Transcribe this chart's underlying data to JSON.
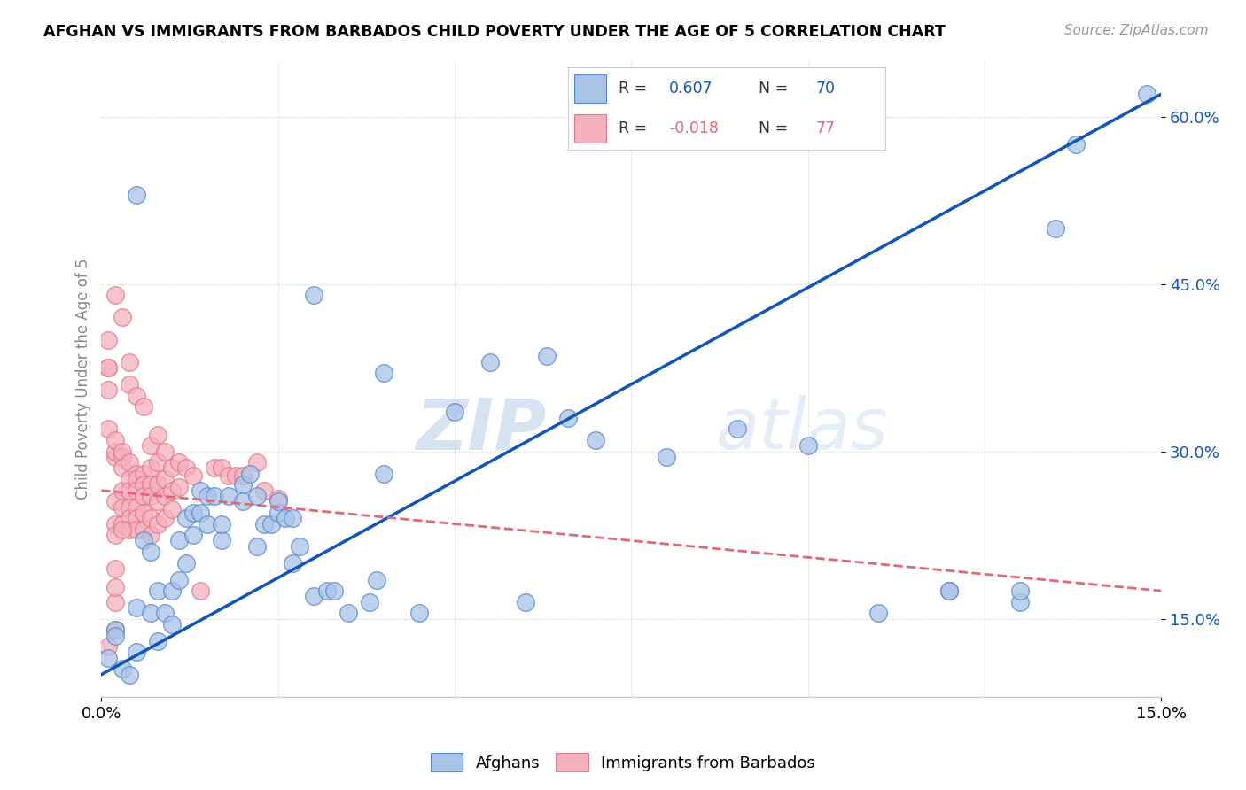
{
  "title": "AFGHAN VS IMMIGRANTS FROM BARBADOS CHILD POVERTY UNDER THE AGE OF 5 CORRELATION CHART",
  "source": "Source: ZipAtlas.com",
  "ylabel": "Child Poverty Under the Age of 5",
  "xlim": [
    0.0,
    0.15
  ],
  "ylim": [
    0.08,
    0.65
  ],
  "yticks": [
    0.15,
    0.3,
    0.45,
    0.6
  ],
  "ytick_labels": [
    "15.0%",
    "30.0%",
    "45.0%",
    "60.0%"
  ],
  "afghan_color": "#aac4e8",
  "barbados_color": "#f5b0be",
  "afghan_edge_color": "#5588cc",
  "barbados_edge_color": "#e07888",
  "afghan_line_color": "#1155bb",
  "barbados_line_color": "#e06878",
  "R_afghan": 0.607,
  "N_afghan": 70,
  "R_barbados": -0.018,
  "N_barbados": 77,
  "watermark_zip": "ZIP",
  "watermark_atlas": "atlas",
  "afghan_scatter": [
    [
      0.001,
      0.115
    ],
    [
      0.002,
      0.14
    ],
    [
      0.003,
      0.105
    ],
    [
      0.004,
      0.1
    ],
    [
      0.005,
      0.12
    ],
    [
      0.005,
      0.16
    ],
    [
      0.006,
      0.22
    ],
    [
      0.007,
      0.21
    ],
    [
      0.007,
      0.155
    ],
    [
      0.008,
      0.175
    ],
    [
      0.008,
      0.13
    ],
    [
      0.009,
      0.155
    ],
    [
      0.01,
      0.145
    ],
    [
      0.01,
      0.175
    ],
    [
      0.011,
      0.185
    ],
    [
      0.011,
      0.22
    ],
    [
      0.012,
      0.24
    ],
    [
      0.012,
      0.2
    ],
    [
      0.013,
      0.245
    ],
    [
      0.013,
      0.225
    ],
    [
      0.014,
      0.245
    ],
    [
      0.014,
      0.265
    ],
    [
      0.015,
      0.26
    ],
    [
      0.015,
      0.235
    ],
    [
      0.016,
      0.26
    ],
    [
      0.017,
      0.22
    ],
    [
      0.017,
      0.235
    ],
    [
      0.018,
      0.26
    ],
    [
      0.02,
      0.27
    ],
    [
      0.02,
      0.255
    ],
    [
      0.021,
      0.28
    ],
    [
      0.022,
      0.26
    ],
    [
      0.022,
      0.215
    ],
    [
      0.023,
      0.235
    ],
    [
      0.024,
      0.235
    ],
    [
      0.025,
      0.245
    ],
    [
      0.025,
      0.255
    ],
    [
      0.026,
      0.24
    ],
    [
      0.027,
      0.24
    ],
    [
      0.027,
      0.2
    ],
    [
      0.028,
      0.215
    ],
    [
      0.03,
      0.17
    ],
    [
      0.032,
      0.175
    ],
    [
      0.033,
      0.175
    ],
    [
      0.035,
      0.155
    ],
    [
      0.038,
      0.165
    ],
    [
      0.039,
      0.185
    ],
    [
      0.04,
      0.28
    ],
    [
      0.045,
      0.155
    ],
    [
      0.05,
      0.335
    ],
    [
      0.055,
      0.38
    ],
    [
      0.06,
      0.165
    ],
    [
      0.063,
      0.385
    ],
    [
      0.066,
      0.33
    ],
    [
      0.07,
      0.31
    ],
    [
      0.08,
      0.295
    ],
    [
      0.09,
      0.32
    ],
    [
      0.1,
      0.305
    ],
    [
      0.11,
      0.155
    ],
    [
      0.12,
      0.175
    ],
    [
      0.13,
      0.165
    ],
    [
      0.13,
      0.175
    ],
    [
      0.135,
      0.5
    ],
    [
      0.138,
      0.575
    ],
    [
      0.148,
      0.62
    ],
    [
      0.005,
      0.53
    ],
    [
      0.03,
      0.44
    ],
    [
      0.04,
      0.37
    ],
    [
      0.12,
      0.175
    ],
    [
      0.002,
      0.135
    ]
  ],
  "barbados_scatter": [
    [
      0.001,
      0.32
    ],
    [
      0.001,
      0.355
    ],
    [
      0.001,
      0.375
    ],
    [
      0.001,
      0.4
    ],
    [
      0.002,
      0.295
    ],
    [
      0.002,
      0.3
    ],
    [
      0.002,
      0.31
    ],
    [
      0.002,
      0.255
    ],
    [
      0.002,
      0.235
    ],
    [
      0.002,
      0.225
    ],
    [
      0.003,
      0.295
    ],
    [
      0.003,
      0.3
    ],
    [
      0.003,
      0.285
    ],
    [
      0.003,
      0.265
    ],
    [
      0.003,
      0.25
    ],
    [
      0.003,
      0.235
    ],
    [
      0.004,
      0.29
    ],
    [
      0.004,
      0.275
    ],
    [
      0.004,
      0.265
    ],
    [
      0.004,
      0.25
    ],
    [
      0.004,
      0.24
    ],
    [
      0.004,
      0.23
    ],
    [
      0.005,
      0.28
    ],
    [
      0.005,
      0.275
    ],
    [
      0.005,
      0.265
    ],
    [
      0.005,
      0.25
    ],
    [
      0.005,
      0.24
    ],
    [
      0.005,
      0.23
    ],
    [
      0.006,
      0.28
    ],
    [
      0.006,
      0.27
    ],
    [
      0.006,
      0.26
    ],
    [
      0.006,
      0.245
    ],
    [
      0.006,
      0.23
    ],
    [
      0.007,
      0.305
    ],
    [
      0.007,
      0.285
    ],
    [
      0.007,
      0.27
    ],
    [
      0.007,
      0.26
    ],
    [
      0.007,
      0.24
    ],
    [
      0.007,
      0.225
    ],
    [
      0.008,
      0.315
    ],
    [
      0.008,
      0.29
    ],
    [
      0.008,
      0.27
    ],
    [
      0.008,
      0.255
    ],
    [
      0.008,
      0.235
    ],
    [
      0.009,
      0.3
    ],
    [
      0.009,
      0.275
    ],
    [
      0.009,
      0.26
    ],
    [
      0.009,
      0.24
    ],
    [
      0.01,
      0.285
    ],
    [
      0.01,
      0.265
    ],
    [
      0.01,
      0.248
    ],
    [
      0.011,
      0.29
    ],
    [
      0.011,
      0.268
    ],
    [
      0.012,
      0.285
    ],
    [
      0.013,
      0.278
    ],
    [
      0.014,
      0.175
    ],
    [
      0.016,
      0.285
    ],
    [
      0.017,
      0.285
    ],
    [
      0.018,
      0.278
    ],
    [
      0.019,
      0.278
    ],
    [
      0.02,
      0.278
    ],
    [
      0.022,
      0.29
    ],
    [
      0.023,
      0.265
    ],
    [
      0.025,
      0.258
    ],
    [
      0.001,
      0.375
    ],
    [
      0.002,
      0.44
    ],
    [
      0.003,
      0.23
    ],
    [
      0.001,
      0.125
    ],
    [
      0.002,
      0.14
    ],
    [
      0.002,
      0.195
    ],
    [
      0.002,
      0.165
    ],
    [
      0.002,
      0.178
    ],
    [
      0.003,
      0.42
    ],
    [
      0.004,
      0.38
    ],
    [
      0.004,
      0.36
    ],
    [
      0.005,
      0.35
    ],
    [
      0.006,
      0.34
    ]
  ]
}
